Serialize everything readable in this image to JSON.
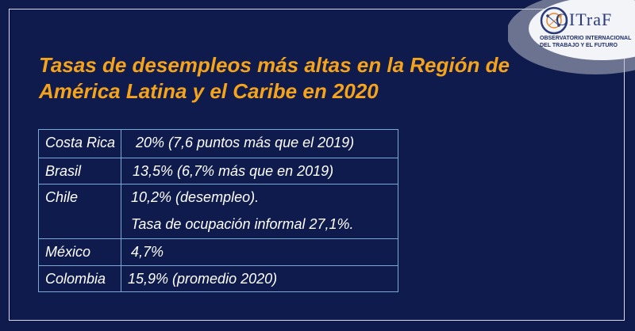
{
  "logo": {
    "name": "OITraF",
    "subtitle": "OBSERVATORIO INTERNACIONAL DEL TRABAJO Y EL FUTURO",
    "icon": "gear-network-icon"
  },
  "title": "Tasas de desempleos más altas en la Región de América Latina y el Caribe en 2020",
  "table": {
    "rows": [
      {
        "country": "Costa Rica",
        "value": "20% (7,6 puntos más que el 2019)"
      },
      {
        "country": "Brasil",
        "value": "13,5% (6,7% más que en 2019)"
      },
      {
        "country": "Chile",
        "value": "10,2% (desempleo).",
        "value2": "Tasa de ocupación informal 27,1%."
      },
      {
        "country": "México",
        "value": "4,7%"
      },
      {
        "country": "Colombia",
        "value": "15,9% (promedio 2020)"
      }
    ]
  },
  "colors": {
    "background": "#0f1b4d",
    "title": "#f5a31a",
    "table_border": "#7aa9d6",
    "text": "#ffffff"
  }
}
